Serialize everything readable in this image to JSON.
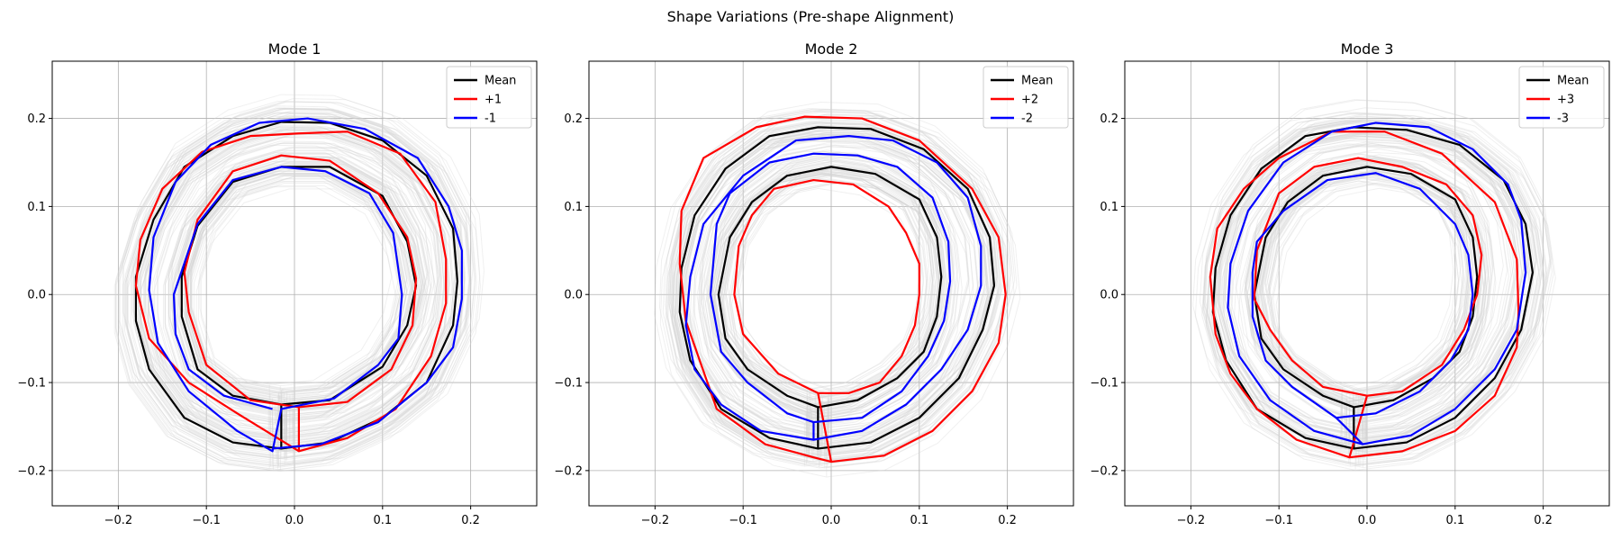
{
  "figure": {
    "title": "Shape Variations (Pre-shape Alignment)"
  },
  "colors": {
    "mean": "#000000",
    "plus": "#ff0000",
    "minus": "#0000ff",
    "samples": "#d3d3d3",
    "grid": "#b0b0b0"
  },
  "chart_data": [
    {
      "type": "line",
      "title": "Mode 1",
      "xlim": [
        -0.275,
        0.275
      ],
      "ylim": [
        -0.24,
        0.265
      ],
      "xticks": [
        -0.2,
        -0.1,
        0.0,
        0.1,
        0.2
      ],
      "yticks": [
        -0.2,
        -0.1,
        0.0,
        0.1,
        0.2
      ],
      "xtick_labels": [
        "−0.2",
        "−0.1",
        "0.0",
        "0.1",
        "0.2"
      ],
      "ytick_labels": [
        "−0.2",
        "−0.1",
        "0.0",
        "0.1",
        "0.2"
      ],
      "grid": true,
      "legend": "top-right",
      "series": [
        {
          "name": "Mean",
          "x": [
            -0.015,
            0.04,
            0.1,
            0.15,
            0.18,
            0.185,
            0.18,
            0.15,
            0.1,
            0.04,
            -0.015,
            -0.07,
            -0.125,
            -0.16,
            -0.18,
            -0.18,
            -0.165,
            -0.125,
            -0.07,
            -0.015,
            -0.015,
            0.04,
            0.1,
            0.128,
            0.138,
            0.128,
            0.1,
            0.04,
            -0.015,
            -0.07,
            -0.11,
            -0.128,
            -0.128,
            -0.11,
            -0.07,
            -0.015
          ],
          "y": [
            -0.175,
            -0.168,
            -0.14,
            -0.1,
            -0.035,
            0.015,
            0.075,
            0.135,
            0.175,
            0.195,
            0.196,
            0.18,
            0.145,
            0.085,
            0.02,
            -0.03,
            -0.085,
            -0.14,
            -0.168,
            -0.175,
            -0.125,
            -0.12,
            -0.082,
            -0.035,
            0.01,
            0.06,
            0.112,
            0.145,
            0.145,
            0.128,
            0.078,
            0.02,
            -0.025,
            -0.085,
            -0.115,
            -0.125
          ]
        },
        {
          "name": "+1",
          "x": [
            0.005,
            0.06,
            0.115,
            0.155,
            0.172,
            0.172,
            0.16,
            0.12,
            0.06,
            0.005,
            -0.05,
            -0.105,
            -0.15,
            -0.175,
            -0.18,
            -0.165,
            -0.12,
            -0.065,
            0.005,
            0.005,
            0.06,
            0.11,
            0.134,
            0.138,
            0.128,
            0.095,
            0.04,
            -0.015,
            -0.07,
            -0.11,
            -0.125,
            -0.12,
            -0.1,
            -0.05,
            0.005
          ],
          "y": [
            -0.178,
            -0.163,
            -0.13,
            -0.07,
            -0.01,
            0.04,
            0.105,
            0.16,
            0.185,
            0.183,
            0.18,
            0.162,
            0.12,
            0.062,
            0.01,
            -0.05,
            -0.1,
            -0.135,
            -0.178,
            -0.128,
            -0.122,
            -0.085,
            -0.035,
            0.018,
            0.065,
            0.115,
            0.152,
            0.158,
            0.14,
            0.085,
            0.025,
            -0.02,
            -0.08,
            -0.12,
            -0.128
          ]
        },
        {
          "name": "-1",
          "x": [
            -0.025,
            0.03,
            0.095,
            0.15,
            0.18,
            0.19,
            0.19,
            0.175,
            0.14,
            0.08,
            0.015,
            -0.04,
            -0.095,
            -0.135,
            -0.16,
            -0.165,
            -0.155,
            -0.12,
            -0.065,
            -0.025,
            -0.015,
            0.045,
            0.095,
            0.118,
            0.122,
            0.112,
            0.085,
            0.035,
            -0.015,
            -0.07,
            -0.11,
            -0.137,
            -0.135,
            -0.12,
            -0.08,
            -0.025
          ],
          "y": [
            -0.175,
            -0.17,
            -0.145,
            -0.1,
            -0.06,
            -0.005,
            0.05,
            0.1,
            0.155,
            0.188,
            0.2,
            0.195,
            0.17,
            0.128,
            0.065,
            0.005,
            -0.055,
            -0.11,
            -0.155,
            -0.178,
            -0.13,
            -0.118,
            -0.08,
            -0.05,
            0.0,
            0.07,
            0.115,
            0.14,
            0.145,
            0.13,
            0.08,
            0.0,
            -0.045,
            -0.085,
            -0.115,
            -0.13
          ]
        }
      ]
    },
    {
      "type": "line",
      "title": "Mode 2",
      "xlim": [
        -0.275,
        0.275
      ],
      "ylim": [
        -0.24,
        0.265
      ],
      "xticks": [
        -0.2,
        -0.1,
        0.0,
        0.1,
        0.2
      ],
      "yticks": [
        -0.2,
        -0.1,
        0.0,
        0.1,
        0.2
      ],
      "xtick_labels": [
        "−0.2",
        "−0.1",
        "0.0",
        "0.1",
        "0.2"
      ],
      "ytick_labels": [
        "−0.2",
        "−0.1",
        "0.0",
        "0.1",
        "0.2"
      ],
      "grid": true,
      "legend": "top-right",
      "series": [
        {
          "name": "Mean",
          "x": [
            -0.015,
            0.045,
            0.1,
            0.145,
            0.172,
            0.185,
            0.18,
            0.155,
            0.105,
            0.045,
            -0.015,
            -0.07,
            -0.12,
            -0.155,
            -0.17,
            -0.172,
            -0.16,
            -0.125,
            -0.07,
            -0.015,
            -0.015,
            0.03,
            0.075,
            0.105,
            0.12,
            0.125,
            0.12,
            0.1,
            0.05,
            0.0,
            -0.05,
            -0.09,
            -0.115,
            -0.128,
            -0.12,
            -0.095,
            -0.05,
            -0.015
          ],
          "y": [
            -0.175,
            -0.168,
            -0.14,
            -0.095,
            -0.04,
            0.01,
            0.065,
            0.12,
            0.165,
            0.188,
            0.19,
            0.18,
            0.143,
            0.09,
            0.03,
            -0.02,
            -0.075,
            -0.13,
            -0.163,
            -0.175,
            -0.128,
            -0.12,
            -0.095,
            -0.065,
            -0.025,
            0.02,
            0.065,
            0.108,
            0.137,
            0.145,
            0.135,
            0.105,
            0.065,
            0.0,
            -0.05,
            -0.085,
            -0.115,
            -0.128
          ]
        },
        {
          "name": "+2",
          "x": [
            0.0,
            0.06,
            0.115,
            0.16,
            0.19,
            0.198,
            0.19,
            0.16,
            0.1,
            0.035,
            -0.03,
            -0.085,
            -0.145,
            -0.17,
            -0.172,
            -0.165,
            -0.13,
            -0.075,
            -0.02,
            0.0,
            -0.015,
            0.02,
            0.055,
            0.08,
            0.095,
            0.1,
            0.1,
            0.085,
            0.065,
            0.025,
            -0.02,
            -0.065,
            -0.09,
            -0.105,
            -0.11,
            -0.1,
            -0.06,
            -0.015
          ],
          "y": [
            -0.19,
            -0.183,
            -0.155,
            -0.11,
            -0.055,
            0.0,
            0.065,
            0.12,
            0.175,
            0.2,
            0.202,
            0.19,
            0.155,
            0.095,
            0.035,
            -0.03,
            -0.13,
            -0.17,
            -0.185,
            -0.19,
            -0.112,
            -0.112,
            -0.1,
            -0.07,
            -0.035,
            0.0,
            0.035,
            0.07,
            0.1,
            0.125,
            0.13,
            0.12,
            0.09,
            0.055,
            0.0,
            -0.045,
            -0.09,
            -0.112
          ]
        },
        {
          "name": "-2",
          "x": [
            -0.02,
            0.035,
            0.085,
            0.125,
            0.155,
            0.17,
            0.17,
            0.155,
            0.12,
            0.07,
            0.02,
            -0.04,
            -0.1,
            -0.145,
            -0.16,
            -0.165,
            -0.155,
            -0.125,
            -0.08,
            -0.02,
            -0.02,
            0.035,
            0.08,
            0.11,
            0.128,
            0.135,
            0.133,
            0.115,
            0.075,
            0.03,
            -0.02,
            -0.07,
            -0.115,
            -0.13,
            -0.137,
            -0.125,
            -0.095,
            -0.05,
            -0.02
          ],
          "y": [
            -0.165,
            -0.155,
            -0.125,
            -0.085,
            -0.04,
            0.01,
            0.055,
            0.11,
            0.15,
            0.175,
            0.18,
            0.175,
            0.135,
            0.08,
            0.02,
            -0.035,
            -0.085,
            -0.125,
            -0.155,
            -0.165,
            -0.145,
            -0.14,
            -0.11,
            -0.07,
            -0.03,
            0.015,
            0.06,
            0.11,
            0.145,
            0.158,
            0.16,
            0.15,
            0.115,
            0.08,
            0.0,
            -0.065,
            -0.1,
            -0.135,
            -0.145
          ]
        }
      ]
    },
    {
      "type": "line",
      "title": "Mode 3",
      "xlim": [
        -0.275,
        0.275
      ],
      "ylim": [
        -0.24,
        0.265
      ],
      "xticks": [
        -0.2,
        -0.1,
        0.0,
        0.1,
        0.2
      ],
      "yticks": [
        -0.2,
        -0.1,
        0.0,
        0.1,
        0.2
      ],
      "xtick_labels": [
        "−0.2",
        "−0.1",
        "0.0",
        "0.1",
        "0.2"
      ],
      "ytick_labels": [
        "−0.2",
        "−0.1",
        "0.0",
        "0.1",
        "0.2"
      ],
      "grid": true,
      "legend": "top-right",
      "series": [
        {
          "name": "Mean",
          "x": [
            -0.015,
            0.045,
            0.1,
            0.145,
            0.175,
            0.188,
            0.18,
            0.155,
            0.105,
            0.045,
            -0.015,
            -0.07,
            -0.12,
            -0.155,
            -0.172,
            -0.175,
            -0.16,
            -0.125,
            -0.07,
            -0.015,
            -0.015,
            0.03,
            0.075,
            0.105,
            0.12,
            0.125,
            0.12,
            0.1,
            0.05,
            0.0,
            -0.05,
            -0.09,
            -0.115,
            -0.128,
            -0.12,
            -0.095,
            -0.05,
            -0.015
          ],
          "y": [
            -0.175,
            -0.168,
            -0.14,
            -0.095,
            -0.04,
            0.025,
            0.08,
            0.13,
            0.17,
            0.187,
            0.19,
            0.18,
            0.143,
            0.09,
            0.03,
            -0.02,
            -0.075,
            -0.13,
            -0.163,
            -0.175,
            -0.128,
            -0.12,
            -0.095,
            -0.065,
            -0.025,
            0.02,
            0.065,
            0.108,
            0.137,
            0.145,
            0.135,
            0.105,
            0.065,
            0.0,
            -0.05,
            -0.085,
            -0.115,
            -0.128
          ]
        },
        {
          "name": "+3",
          "x": [
            -0.02,
            0.04,
            0.1,
            0.145,
            0.17,
            0.172,
            0.17,
            0.145,
            0.085,
            0.02,
            -0.04,
            -0.1,
            -0.14,
            -0.17,
            -0.178,
            -0.172,
            -0.155,
            -0.125,
            -0.08,
            -0.02,
            0.0,
            0.04,
            0.085,
            0.11,
            0.125,
            0.13,
            0.12,
            0.09,
            0.04,
            -0.01,
            -0.06,
            -0.1,
            -0.125,
            -0.128,
            -0.11,
            -0.085,
            -0.05,
            0.0
          ],
          "y": [
            -0.185,
            -0.178,
            -0.155,
            -0.115,
            -0.06,
            -0.02,
            0.04,
            0.105,
            0.16,
            0.185,
            0.185,
            0.155,
            0.12,
            0.075,
            0.02,
            -0.045,
            -0.09,
            -0.13,
            -0.165,
            -0.185,
            -0.115,
            -0.11,
            -0.08,
            -0.04,
            0.0,
            0.045,
            0.09,
            0.125,
            0.145,
            0.155,
            0.145,
            0.115,
            0.05,
            -0.005,
            -0.04,
            -0.075,
            -0.105,
            -0.115
          ]
        },
        {
          "name": "-3",
          "x": [
            -0.005,
            0.05,
            0.1,
            0.145,
            0.17,
            0.18,
            0.175,
            0.16,
            0.12,
            0.07,
            0.01,
            -0.04,
            -0.095,
            -0.135,
            -0.155,
            -0.158,
            -0.145,
            -0.11,
            -0.06,
            -0.005,
            -0.035,
            0.01,
            0.06,
            0.095,
            0.115,
            0.12,
            0.115,
            0.1,
            0.06,
            0.01,
            -0.045,
            -0.095,
            -0.125,
            -0.13,
            -0.13,
            -0.115,
            -0.085,
            -0.035
          ],
          "y": [
            -0.17,
            -0.16,
            -0.13,
            -0.085,
            -0.04,
            0.025,
            0.085,
            0.125,
            0.165,
            0.19,
            0.195,
            0.185,
            0.15,
            0.095,
            0.035,
            -0.015,
            -0.07,
            -0.12,
            -0.155,
            -0.17,
            -0.14,
            -0.135,
            -0.11,
            -0.075,
            -0.04,
            0.0,
            0.045,
            0.08,
            0.12,
            0.138,
            0.13,
            0.095,
            0.06,
            0.025,
            -0.025,
            -0.075,
            -0.105,
            -0.14
          ]
        }
      ]
    }
  ]
}
